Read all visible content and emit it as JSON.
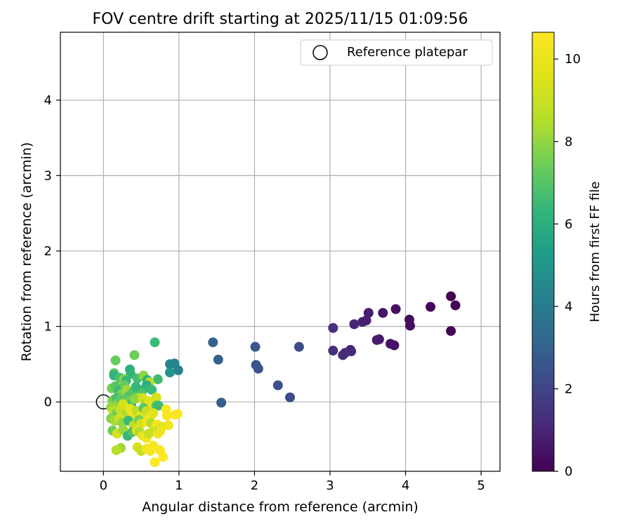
{
  "chart_data": {
    "type": "scatter",
    "title": "FOV centre drift starting at 2025/11/15 01:09:56",
    "xlabel": "Angular distance from reference (arcmin)",
    "ylabel": "Rotation from reference (arcmin)",
    "xlim": [
      -0.57,
      5.25
    ],
    "ylim": [
      -0.92,
      4.9
    ],
    "xticks": [
      0,
      1,
      2,
      3,
      4,
      5
    ],
    "yticks": [
      0,
      1,
      2,
      3,
      4
    ],
    "grid": true,
    "legend": {
      "position": "top-right",
      "entries": [
        "Reference platepar"
      ]
    },
    "reference_point": {
      "x": 0,
      "y": 0,
      "label": "Reference platepar"
    },
    "colorbar": {
      "label": "Hours from first FF file",
      "range": [
        0,
        10.65
      ],
      "ticks": [
        0,
        2,
        4,
        6,
        8,
        10
      ],
      "colormap": "viridis"
    },
    "points": [
      {
        "x": 4.6,
        "y": 1.4,
        "h": 0.0
      },
      {
        "x": 4.66,
        "y": 1.28,
        "h": 0.05
      },
      {
        "x": 4.6,
        "y": 0.94,
        "h": 0.1
      },
      {
        "x": 4.33,
        "y": 1.26,
        "h": 0.15
      },
      {
        "x": 4.05,
        "y": 1.09,
        "h": 0.3
      },
      {
        "x": 4.06,
        "y": 1.01,
        "h": 0.35
      },
      {
        "x": 3.87,
        "y": 1.23,
        "h": 0.45
      },
      {
        "x": 3.8,
        "y": 0.77,
        "h": 0.5
      },
      {
        "x": 3.85,
        "y": 0.75,
        "h": 0.55
      },
      {
        "x": 3.7,
        "y": 1.18,
        "h": 0.6
      },
      {
        "x": 3.65,
        "y": 0.83,
        "h": 0.65
      },
      {
        "x": 3.62,
        "y": 0.82,
        "h": 0.7
      },
      {
        "x": 3.51,
        "y": 1.18,
        "h": 0.8
      },
      {
        "x": 3.48,
        "y": 1.08,
        "h": 0.85
      },
      {
        "x": 3.43,
        "y": 1.06,
        "h": 0.9
      },
      {
        "x": 3.32,
        "y": 1.03,
        "h": 1.0
      },
      {
        "x": 3.27,
        "y": 0.69,
        "h": 1.05
      },
      {
        "x": 3.28,
        "y": 0.67,
        "h": 1.1
      },
      {
        "x": 3.2,
        "y": 0.65,
        "h": 1.15
      },
      {
        "x": 3.17,
        "y": 0.62,
        "h": 1.2
      },
      {
        "x": 3.04,
        "y": 0.98,
        "h": 1.3
      },
      {
        "x": 3.04,
        "y": 0.68,
        "h": 1.35
      },
      {
        "x": 2.59,
        "y": 0.73,
        "h": 2.2
      },
      {
        "x": 2.47,
        "y": 0.06,
        "h": 2.3
      },
      {
        "x": 2.31,
        "y": 0.22,
        "h": 2.4
      },
      {
        "x": 2.05,
        "y": 0.44,
        "h": 2.5
      },
      {
        "x": 2.02,
        "y": 0.49,
        "h": 2.55
      },
      {
        "x": 2.01,
        "y": 0.73,
        "h": 2.6
      },
      {
        "x": 1.56,
        "y": -0.01,
        "h": 2.9
      },
      {
        "x": 1.52,
        "y": 0.56,
        "h": 3.0
      },
      {
        "x": 1.45,
        "y": 0.79,
        "h": 3.1
      },
      {
        "x": 0.99,
        "y": 0.42,
        "h": 4.2
      },
      {
        "x": 0.94,
        "y": 0.51,
        "h": 4.3
      },
      {
        "x": 0.88,
        "y": 0.5,
        "h": 4.4
      },
      {
        "x": 0.88,
        "y": 0.39,
        "h": 5.0
      },
      {
        "x": 0.72,
        "y": 0.3,
        "h": 6.6
      },
      {
        "x": 0.68,
        "y": 0.79,
        "h": 6.5
      },
      {
        "x": 0.41,
        "y": 0.62,
        "h": 7.4
      },
      {
        "x": 0.16,
        "y": 0.55,
        "h": 7.3
      },
      {
        "x": 0.14,
        "y": 0.38,
        "h": 7.0
      },
      {
        "x": 0.14,
        "y": 0.35,
        "h": 6.2
      },
      {
        "x": 0.35,
        "y": 0.43,
        "h": 6.0
      },
      {
        "x": 0.36,
        "y": 0.37,
        "h": 6.3
      },
      {
        "x": 0.22,
        "y": 0.32,
        "h": 6.8
      },
      {
        "x": 0.27,
        "y": 0.3,
        "h": 7.8
      },
      {
        "x": 0.3,
        "y": 0.28,
        "h": 6.4
      },
      {
        "x": 0.45,
        "y": 0.31,
        "h": 6.7
      },
      {
        "x": 0.53,
        "y": 0.35,
        "h": 7.9
      },
      {
        "x": 0.58,
        "y": 0.29,
        "h": 6.1
      },
      {
        "x": 0.61,
        "y": 0.26,
        "h": 8.6
      },
      {
        "x": 0.57,
        "y": 0.22,
        "h": 5.9
      },
      {
        "x": 0.55,
        "y": 0.18,
        "h": 6.2
      },
      {
        "x": 0.5,
        "y": 0.12,
        "h": 6.9
      },
      {
        "x": 0.64,
        "y": 0.16,
        "h": 6.5
      },
      {
        "x": 0.11,
        "y": 0.18,
        "h": 7.5
      },
      {
        "x": 0.16,
        "y": 0.21,
        "h": 7.1
      },
      {
        "x": 0.2,
        "y": 0.15,
        "h": 6.6
      },
      {
        "x": 0.24,
        "y": 0.1,
        "h": 7.7
      },
      {
        "x": 0.28,
        "y": 0.22,
        "h": 7.3
      },
      {
        "x": 0.31,
        "y": 0.16,
        "h": 8.2
      },
      {
        "x": 0.34,
        "y": 0.08,
        "h": 6.9
      },
      {
        "x": 0.39,
        "y": 0.13,
        "h": 7.0
      },
      {
        "x": 0.43,
        "y": 0.2,
        "h": 6.4
      },
      {
        "x": 0.46,
        "y": 0.05,
        "h": 8.5
      },
      {
        "x": 0.12,
        "y": 0.02,
        "h": 7.6
      },
      {
        "x": 0.17,
        "y": 0.05,
        "h": 6.8
      },
      {
        "x": 0.2,
        "y": -0.01,
        "h": 8.0
      },
      {
        "x": 0.23,
        "y": 0.03,
        "h": 7.2
      },
      {
        "x": 0.27,
        "y": -0.05,
        "h": 8.8
      },
      {
        "x": 0.33,
        "y": 0.01,
        "h": 7.4
      },
      {
        "x": 0.37,
        "y": -0.03,
        "h": 6.7
      },
      {
        "x": 0.41,
        "y": 0.04,
        "h": 7.9
      },
      {
        "x": 0.52,
        "y": 0.05,
        "h": 9.2
      },
      {
        "x": 0.56,
        "y": -0.02,
        "h": 8.3
      },
      {
        "x": 0.6,
        "y": 0.01,
        "h": 9.6
      },
      {
        "x": 0.65,
        "y": -0.06,
        "h": 9.9
      },
      {
        "x": 0.7,
        "y": 0.06,
        "h": 9.4
      },
      {
        "x": 0.7,
        "y": -0.05,
        "h": 6.9
      },
      {
        "x": 0.73,
        "y": -0.05,
        "h": 6.6
      },
      {
        "x": 0.1,
        "y": -0.07,
        "h": 8.1
      },
      {
        "x": 0.13,
        "y": -0.12,
        "h": 8.6
      },
      {
        "x": 0.18,
        "y": -0.15,
        "h": 7.3
      },
      {
        "x": 0.22,
        "y": -0.1,
        "h": 9.0
      },
      {
        "x": 0.26,
        "y": -0.03,
        "h": 9.3
      },
      {
        "x": 0.3,
        "y": -0.15,
        "h": 8.4
      },
      {
        "x": 0.35,
        "y": -0.09,
        "h": 9.8
      },
      {
        "x": 0.38,
        "y": -0.18,
        "h": 10.1
      },
      {
        "x": 0.44,
        "y": -0.12,
        "h": 8.7
      },
      {
        "x": 0.49,
        "y": -0.18,
        "h": 9.5
      },
      {
        "x": 0.53,
        "y": -0.08,
        "h": 7.1
      },
      {
        "x": 0.57,
        "y": -0.12,
        "h": 8.9
      },
      {
        "x": 0.62,
        "y": -0.19,
        "h": 10.0
      },
      {
        "x": 0.66,
        "y": -0.15,
        "h": 9.7
      },
      {
        "x": 0.1,
        "y": -0.22,
        "h": 7.8
      },
      {
        "x": 0.15,
        "y": -0.25,
        "h": 8.3
      },
      {
        "x": 0.21,
        "y": -0.22,
        "h": 9.1
      },
      {
        "x": 0.25,
        "y": -0.28,
        "h": 8.0
      },
      {
        "x": 0.33,
        "y": -0.25,
        "h": 6.5
      },
      {
        "x": 0.4,
        "y": -0.31,
        "h": 8.8
      },
      {
        "x": 0.47,
        "y": -0.24,
        "h": 7.6
      },
      {
        "x": 0.5,
        "y": -0.29,
        "h": 9.4
      },
      {
        "x": 0.58,
        "y": -0.26,
        "h": 10.3
      },
      {
        "x": 0.63,
        "y": -0.28,
        "h": 8.5
      },
      {
        "x": 0.67,
        "y": -0.35,
        "h": 9.1
      },
      {
        "x": 0.71,
        "y": -0.3,
        "h": 10.4
      },
      {
        "x": 0.74,
        "y": -0.37,
        "h": 8.2
      },
      {
        "x": 0.83,
        "y": -0.1,
        "h": 10.6
      },
      {
        "x": 0.84,
        "y": -0.18,
        "h": 10.5
      },
      {
        "x": 0.86,
        "y": -0.31,
        "h": 10.2
      },
      {
        "x": 0.95,
        "y": -0.17,
        "h": 10.6
      },
      {
        "x": 0.98,
        "y": -0.16,
        "h": 10.5
      },
      {
        "x": 0.12,
        "y": -0.38,
        "h": 7.4
      },
      {
        "x": 0.18,
        "y": -0.42,
        "h": 9.3
      },
      {
        "x": 0.26,
        "y": -0.37,
        "h": 8.1
      },
      {
        "x": 0.32,
        "y": -0.45,
        "h": 6.4
      },
      {
        "x": 0.38,
        "y": -0.4,
        "h": 6.9
      },
      {
        "x": 0.44,
        "y": -0.38,
        "h": 9.6
      },
      {
        "x": 0.48,
        "y": -0.4,
        "h": 8.4
      },
      {
        "x": 0.52,
        "y": -0.45,
        "h": 10.0
      },
      {
        "x": 0.57,
        "y": -0.48,
        "h": 10.2
      },
      {
        "x": 0.6,
        "y": -0.42,
        "h": 9.0
      },
      {
        "x": 0.72,
        "y": -0.42,
        "h": 10.3
      },
      {
        "x": 0.77,
        "y": -0.33,
        "h": 9.9
      },
      {
        "x": 0.75,
        "y": -0.39,
        "h": 10.1
      },
      {
        "x": 0.23,
        "y": -0.61,
        "h": 8.2
      },
      {
        "x": 0.17,
        "y": -0.64,
        "h": 8.6
      },
      {
        "x": 0.45,
        "y": -0.6,
        "h": 9.4
      },
      {
        "x": 0.5,
        "y": -0.65,
        "h": 9.0
      },
      {
        "x": 0.57,
        "y": -0.62,
        "h": 10.3
      },
      {
        "x": 0.62,
        "y": -0.65,
        "h": 10.5
      },
      {
        "x": 0.66,
        "y": -0.58,
        "h": 10.4
      },
      {
        "x": 0.75,
        "y": -0.64,
        "h": 10.5
      },
      {
        "x": 0.79,
        "y": -0.73,
        "h": 10.6
      },
      {
        "x": 0.68,
        "y": -0.8,
        "h": 10.6
      }
    ]
  }
}
